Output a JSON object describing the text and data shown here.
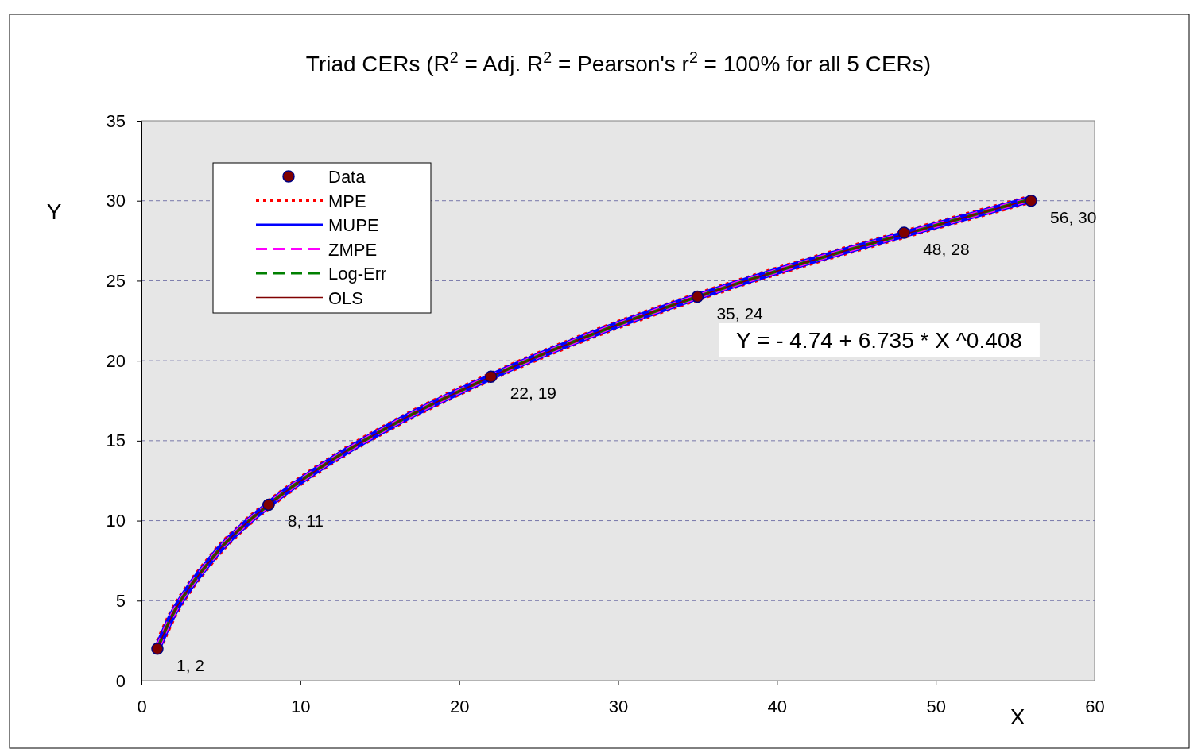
{
  "chart_data": {
    "type": "line",
    "title": "Triad CERs (R$^{2}$ = Adj. R$^{2}$ = Pearson's r$^{2}$ = 100% for all 5 CERs)",
    "xlabel": "X",
    "ylabel": "Y",
    "xlim": [
      0,
      60
    ],
    "xticks": [
      0,
      10,
      20,
      30,
      40,
      50,
      60
    ],
    "ylim": [
      0,
      35
    ],
    "yticks": [
      0,
      5,
      10,
      15,
      20,
      25,
      30,
      35
    ],
    "grid": "y",
    "legend": "top left",
    "annotations": [
      "Y = - 4.74 + 6.735 * X ^0.408"
    ],
    "series": [
      {
        "name": "Data",
        "type": "scatter",
        "color": "#800000",
        "marker": "circle",
        "x": [
          1,
          8,
          22,
          35,
          48,
          56
        ],
        "values": [
          2,
          11,
          19,
          24,
          28,
          30
        ],
        "value_labels": [
          "1, 2",
          "8, 11",
          "22, 19",
          "35, 24",
          "48, 28",
          "56, 30"
        ]
      },
      {
        "name": "MPE",
        "color": "#ff0000",
        "line_style": "dotted",
        "x": [
          1,
          2,
          3,
          4,
          5,
          6,
          8,
          12,
          16,
          22,
          28,
          35,
          42,
          48,
          56
        ],
        "values": [
          2.0,
          4.2,
          5.8,
          7.1,
          8.3,
          9.3,
          11.0,
          13.8,
          16.1,
          19.0,
          21.5,
          24.0,
          26.2,
          27.9,
          30.1
        ]
      },
      {
        "name": "MUPE",
        "color": "#0000ff",
        "line_style": "solid",
        "x": [
          1,
          2,
          3,
          4,
          5,
          6,
          8,
          12,
          16,
          22,
          28,
          35,
          42,
          48,
          56
        ],
        "values": [
          2.0,
          4.2,
          5.8,
          7.1,
          8.3,
          9.3,
          11.0,
          13.8,
          16.1,
          19.0,
          21.5,
          24.0,
          26.2,
          27.9,
          30.1
        ]
      },
      {
        "name": "ZMPE",
        "color": "#ff00ff",
        "line_style": "dashed",
        "x": [
          1,
          2,
          3,
          4,
          5,
          6,
          8,
          12,
          16,
          22,
          28,
          35,
          42,
          48,
          56
        ],
        "values": [
          2.0,
          4.2,
          5.8,
          7.1,
          8.3,
          9.3,
          11.0,
          13.8,
          16.1,
          19.0,
          21.5,
          24.0,
          26.2,
          27.9,
          30.1
        ]
      },
      {
        "name": "Log-Err",
        "color": "#008000",
        "line_style": "dashed",
        "x": [
          1,
          2,
          3,
          4,
          5,
          6,
          8,
          12,
          16,
          22,
          28,
          35,
          42,
          48,
          56
        ],
        "values": [
          2.0,
          4.2,
          5.8,
          7.1,
          8.3,
          9.3,
          11.0,
          13.8,
          16.1,
          19.0,
          21.5,
          24.0,
          26.2,
          27.9,
          30.1
        ]
      },
      {
        "name": "OLS",
        "color": "#800000",
        "line_style": "solid",
        "x": [
          1,
          2,
          3,
          4,
          5,
          6,
          8,
          12,
          16,
          22,
          28,
          35,
          42,
          48,
          56
        ],
        "values": [
          2.0,
          4.2,
          5.8,
          7.1,
          8.3,
          9.3,
          11.0,
          13.8,
          16.1,
          19.0,
          21.5,
          24.0,
          26.2,
          27.9,
          30.1
        ]
      }
    ]
  }
}
